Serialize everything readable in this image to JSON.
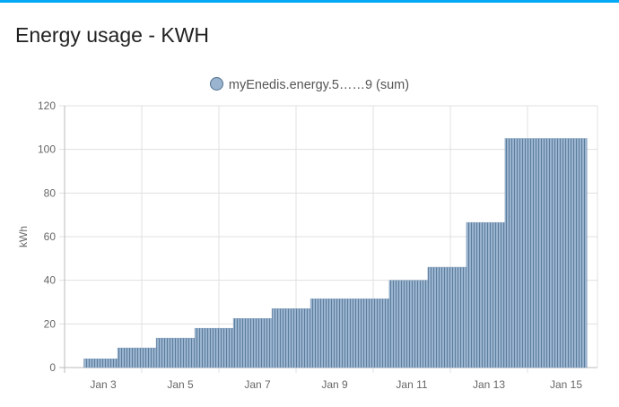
{
  "card": {
    "title": "Energy usage - KWH",
    "accent_color": "#03a9f4"
  },
  "chart_data": {
    "type": "bar",
    "title": "",
    "legend": {
      "entries": [
        "myEnedis.energy.5……9 (sum)"
      ],
      "placement": "top"
    },
    "ylabel": "kWh",
    "xlabel": "",
    "ylim": [
      0,
      120
    ],
    "yticks": [
      0,
      20,
      40,
      60,
      80,
      100,
      120
    ],
    "xticks": [
      "Jan 3",
      "Jan 5",
      "Jan 7",
      "Jan 9",
      "Jan 11",
      "Jan 13",
      "Jan 15"
    ],
    "grid": true,
    "color": "#9ab4cf",
    "stroke_color": "#4f6f8f",
    "x_range": [
      "Jan 2 00:00",
      "Jan 15 19:00"
    ],
    "steps": [
      {
        "start": "Jan 2 12:00",
        "end": "Jan 3 09:00",
        "value": 4
      },
      {
        "start": "Jan 3 09:00",
        "end": "Jan 4 09:00",
        "value": 9
      },
      {
        "start": "Jan 4 09:00",
        "end": "Jan 5 09:00",
        "value": 13.5
      },
      {
        "start": "Jan 5 09:00",
        "end": "Jan 6 09:00",
        "value": 18
      },
      {
        "start": "Jan 6 09:00",
        "end": "Jan 7 09:00",
        "value": 22.5
      },
      {
        "start": "Jan 7 09:00",
        "end": "Jan 8 09:00",
        "value": 27
      },
      {
        "start": "Jan 8 09:00",
        "end": "Jan 10 10:00",
        "value": 31.5
      },
      {
        "start": "Jan 10 10:00",
        "end": "Jan 11 10:00",
        "value": 40
      },
      {
        "start": "Jan 11 10:00",
        "end": "Jan 12 10:00",
        "value": 46
      },
      {
        "start": "Jan 12 10:00",
        "end": "Jan 13 10:00",
        "value": 66.5
      },
      {
        "start": "Jan 13 10:00",
        "end": "Jan 15 13:00",
        "value": 105
      }
    ]
  }
}
